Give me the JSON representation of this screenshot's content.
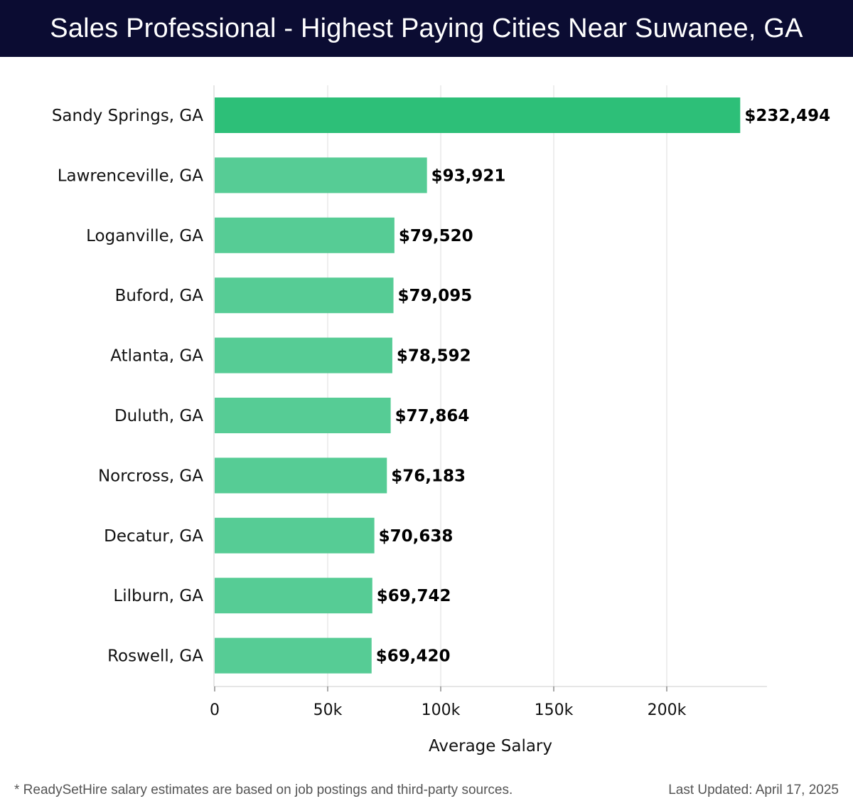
{
  "header": {
    "title": "Sales Professional - Highest Paying Cities Near Suwanee, GA"
  },
  "chart_data": {
    "type": "bar",
    "orientation": "horizontal",
    "title": "Sales Professional - Highest Paying Cities Near Suwanee, GA",
    "xlabel": "Average Salary",
    "ylabel": "",
    "xlim": [
      0,
      245000
    ],
    "x_ticks": [
      0,
      50000,
      100000,
      150000,
      200000
    ],
    "x_tick_labels": [
      "0",
      "50k",
      "100k",
      "150k",
      "200k"
    ],
    "grid": "vertical",
    "categories": [
      "Sandy Springs, GA",
      "Lawrenceville, GA",
      "Loganville, GA",
      "Buford, GA",
      "Atlanta, GA",
      "Duluth, GA",
      "Norcross, GA",
      "Decatur, GA",
      "Lilburn, GA",
      "Roswell, GA"
    ],
    "values": [
      232494,
      93921,
      79520,
      79095,
      78592,
      77864,
      76183,
      70638,
      69742,
      69420
    ],
    "value_labels": [
      "$232,494",
      "$93,921",
      "$79,520",
      "$79,095",
      "$78,592",
      "$77,864",
      "$76,183",
      "$70,638",
      "$69,742",
      "$69,420"
    ],
    "colors": {
      "highlight": "#2dbf78",
      "bar": "#56cc95"
    }
  },
  "footer": {
    "note": "* ReadySetHire salary estimates are based on job postings and third-party sources.",
    "updated": "Last Updated: April 17, 2025"
  }
}
